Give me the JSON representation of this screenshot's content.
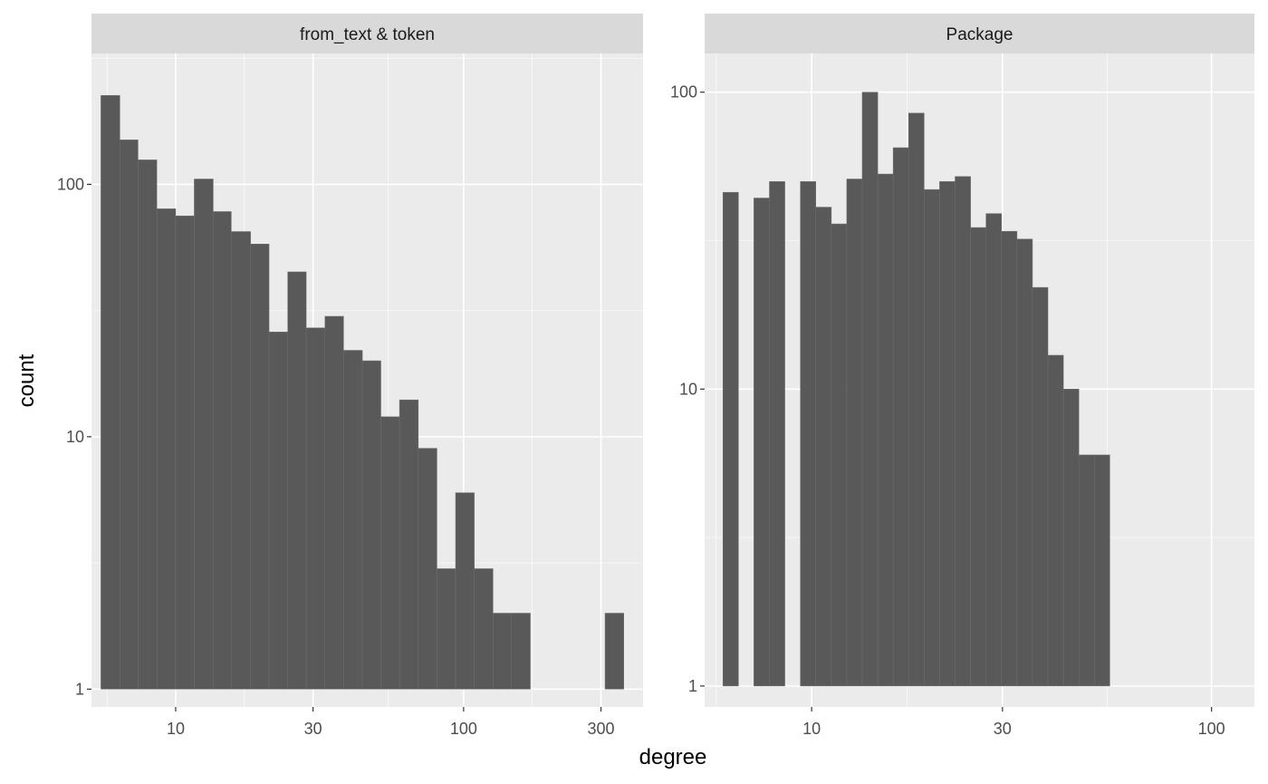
{
  "chart_data": {
    "type": "bar",
    "xlabel": "degree",
    "ylabel": "count",
    "x_scale": "log10",
    "y_scale": "log10",
    "grid": true,
    "colors": {
      "bar": "#595959",
      "bar_outline": "#6e6e6e",
      "panel_bg": "#ebebeb",
      "strip_bg": "#d9d9d9",
      "grid": "#ffffff",
      "tick_text": "#4d4d4d"
    },
    "panels": [
      {
        "strip": "from_text & token",
        "xlim": [
          5.1,
          420
        ],
        "ylim": [
          0.85,
          330
        ],
        "x_ticks": [
          10,
          30,
          100,
          300
        ],
        "x_tick_labels": [
          "10",
          "30",
          "100",
          "300"
        ],
        "y_ticks": [
          1,
          10,
          100
        ],
        "y_tick_labels": [
          "1",
          "10",
          "100"
        ],
        "bar_edges": [
          5.5,
          6.4,
          7.4,
          8.6,
          10.0,
          11.6,
          13.5,
          15.6,
          18.2,
          21.1,
          24.5,
          28.4,
          33.0,
          38.3,
          44.5,
          51.6,
          59.9,
          69.6,
          80.8,
          93.8,
          108.9,
          126.5,
          146.8,
          170.5,
          198.0,
          230.0,
          267.0,
          310.0,
          360.0
        ],
        "counts": [
          225,
          150,
          125,
          80,
          75,
          105,
          78,
          65,
          58,
          26,
          45,
          27,
          30,
          22,
          20,
          12,
          14,
          9,
          3,
          6,
          3,
          2,
          2,
          0,
          0,
          0,
          0,
          2
        ]
      },
      {
        "strip": "Package",
        "xlim": [
          5.4,
          128
        ],
        "ylim": [
          0.85,
          135
        ],
        "x_ticks": [
          10,
          30,
          100
        ],
        "x_tick_labels": [
          "10",
          "30",
          "100"
        ],
        "y_ticks": [
          1,
          10,
          100
        ],
        "y_tick_labels": [
          "1",
          "10",
          "100"
        ],
        "bar_edges": [
          6.0,
          6.56,
          7.17,
          7.84,
          8.57,
          9.37,
          10.24,
          11.2,
          12.24,
          13.38,
          14.63,
          15.99,
          17.48,
          19.11,
          20.89,
          22.84,
          24.97,
          27.29,
          29.84,
          32.62,
          35.66,
          38.98,
          42.61,
          46.58,
          50.92,
          55.67,
          60.86,
          66.53
        ],
        "counts": [
          46,
          0,
          44,
          50,
          0,
          50,
          41,
          36,
          51,
          100,
          53,
          65,
          85,
          47,
          50,
          52,
          35,
          39,
          34,
          32,
          22,
          13,
          10,
          6,
          6,
          0,
          0
        ]
      }
    ]
  }
}
